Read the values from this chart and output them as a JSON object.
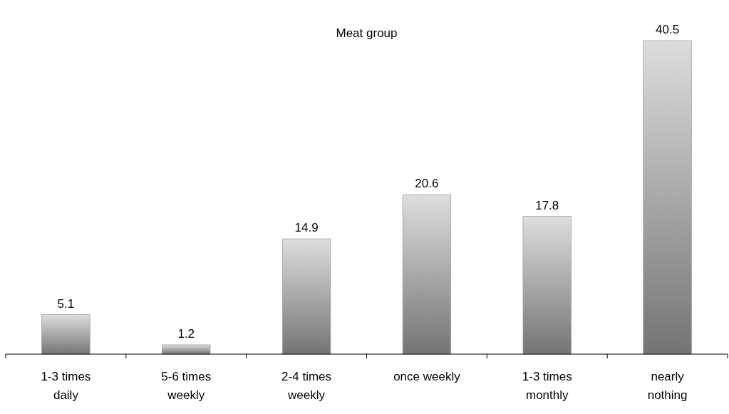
{
  "chart_data": {
    "type": "bar",
    "title": "Meat group",
    "categories": [
      "1-3 times daily",
      "5-6 times weekly",
      "2-4 times weekly",
      "once weekly",
      "1-3 times monthly",
      "nearly nothing"
    ],
    "values": [
      5.1,
      1.2,
      14.9,
      20.6,
      17.8,
      40.5
    ],
    "color": "#a0a0a0",
    "data_labels": true
  }
}
